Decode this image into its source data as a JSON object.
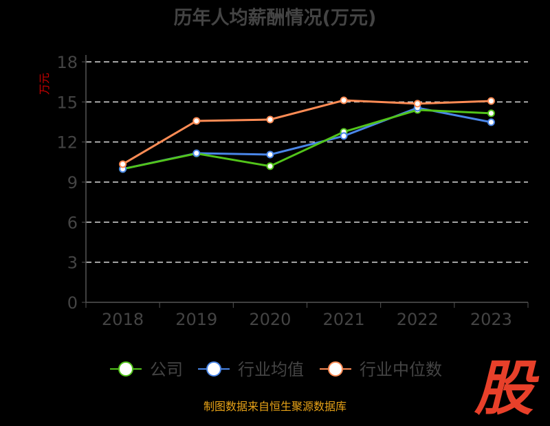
{
  "chart_data": {
    "type": "line",
    "title": "历年人均薪酬情况(万元)",
    "ylabel": "万元",
    "ylim": [
      0,
      18
    ],
    "yticks": [
      0,
      3,
      6,
      9,
      12,
      15,
      18
    ],
    "categories": [
      "2018",
      "2019",
      "2020",
      "2021",
      "2022",
      "2023"
    ],
    "grid": true,
    "legend_position": "bottom",
    "series": [
      {
        "name": "公司",
        "color": "#52c41a",
        "values": [
          9.98,
          11.14,
          10.19,
          12.76,
          14.4,
          14.15
        ]
      },
      {
        "name": "行业均值",
        "color": "#4a86e8",
        "values": [
          9.98,
          11.16,
          11.06,
          12.45,
          14.56,
          13.48
        ]
      },
      {
        "name": "行业中位数",
        "color": "#ff8c55",
        "values": [
          10.34,
          13.58,
          13.68,
          15.12,
          14.87,
          15.07
        ]
      }
    ]
  },
  "source": "制图数据来自恒生聚源数据库",
  "logo_text": "股"
}
